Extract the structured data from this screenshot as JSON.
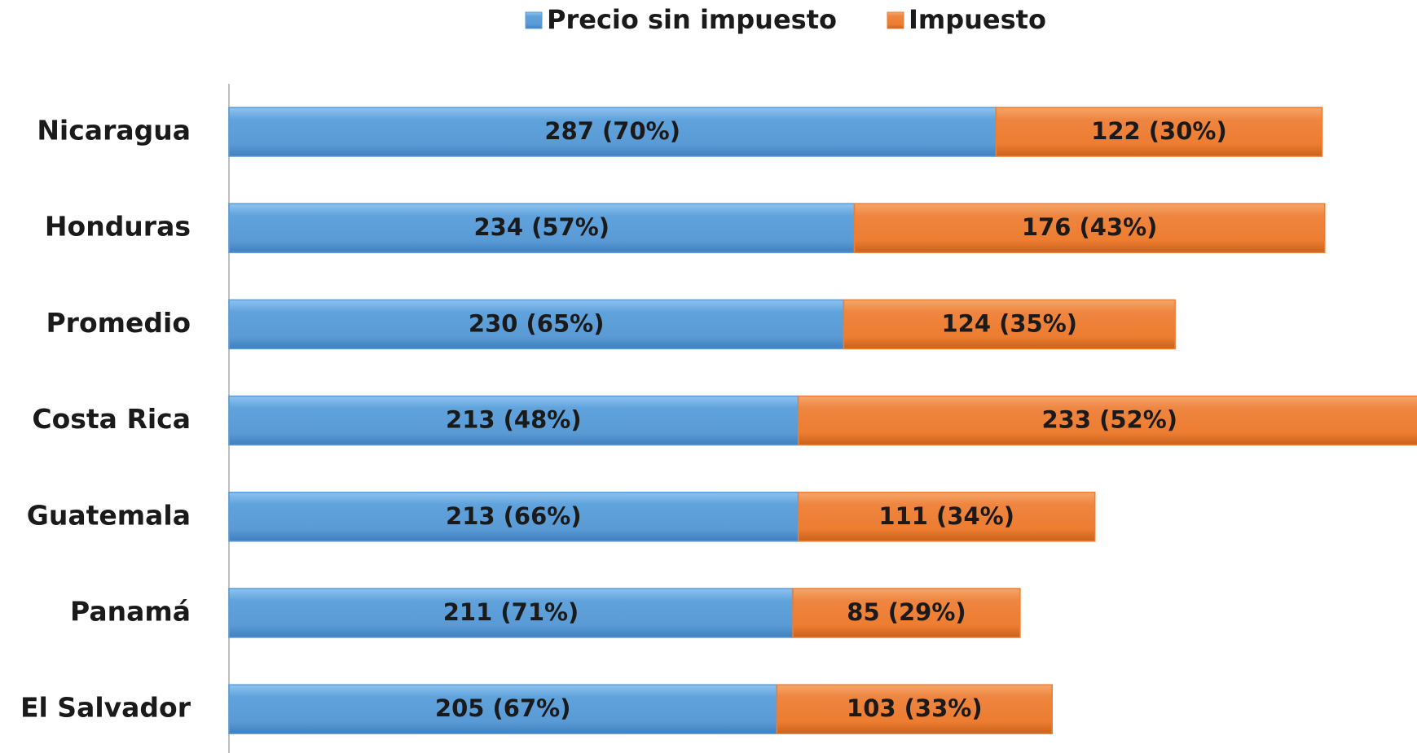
{
  "chart_data": {
    "type": "stacked-bar-horizontal",
    "categories": [
      "Nicaragua",
      "Honduras",
      "Promedio",
      "Costa Rica",
      "Guatemala",
      "Panamá",
      "El Salvador"
    ],
    "series": [
      {
        "name": "Precio sin impuesto",
        "color": "#5b9bd5",
        "values": [
          287,
          234,
          230,
          213,
          213,
          211,
          205
        ],
        "value_labels": [
          "287 (70%)",
          "234 (57%)",
          "230 (65%)",
          "213 (48%)",
          "213 (66%)",
          "211 (71%)",
          "205 (67%)"
        ]
      },
      {
        "name": "Impuesto",
        "color": "#ed7d31",
        "values": [
          122,
          176,
          124,
          233,
          111,
          85,
          103
        ],
        "value_labels": [
          "122 (30%)",
          "176 (43%)",
          "124 (35%)",
          "233 (52%)",
          "111 (34%)",
          "85 (29%)",
          "103 (33%)"
        ]
      }
    ],
    "legend": "top"
  }
}
